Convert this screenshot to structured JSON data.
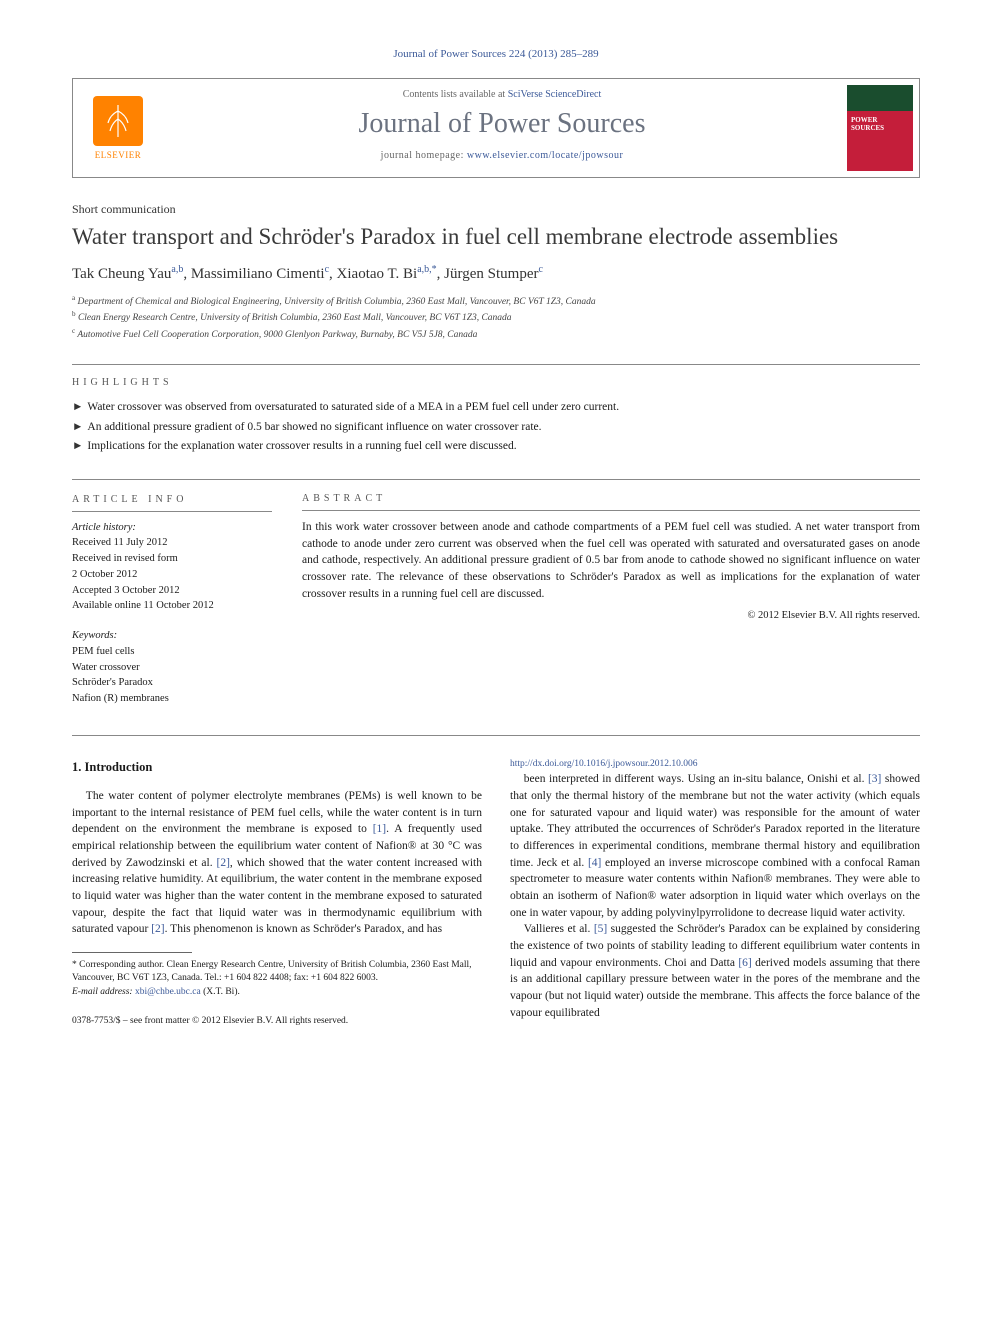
{
  "journal_ref": "Journal of Power Sources 224 (2013) 285–289",
  "header": {
    "contents_prefix": "Contents lists available at ",
    "contents_link": "SciVerse ScienceDirect",
    "journal_name": "Journal of Power Sources",
    "homepage_prefix": "journal homepage: ",
    "homepage_url": "www.elsevier.com/locate/jpowsour",
    "publisher_label": "ELSEVIER"
  },
  "article_type": "Short communication",
  "title": "Water transport and Schröder's Paradox in fuel cell membrane electrode assemblies",
  "authors_html": "Tak Cheung Yau<sup>a,b</sup>, Massimiliano Cimenti<sup>c</sup>, Xiaotao T. Bi<sup>a,b,*</sup>, Jürgen Stumper<sup>c</sup>",
  "affiliations": [
    "a Department of Chemical and Biological Engineering, University of British Columbia, 2360 East Mall, Vancouver, BC V6T 1Z3, Canada",
    "b Clean Energy Research Centre, University of British Columbia, 2360 East Mall, Vancouver, BC V6T 1Z3, Canada",
    "c Automotive Fuel Cell Cooperation Corporation, 9000 Glenlyon Parkway, Burnaby, BC V5J 5J8, Canada"
  ],
  "highlights_label": "highlights",
  "highlights": [
    "Water crossover was observed from oversaturated to saturated side of a MEA in a PEM fuel cell under zero current.",
    "An additional pressure gradient of 0.5 bar showed no significant influence on water crossover rate.",
    "Implications for the explanation water crossover results in a running fuel cell were discussed."
  ],
  "article_info_label": "article info",
  "history_label": "Article history:",
  "history": [
    "Received 11 July 2012",
    "Received in revised form",
    "2 October 2012",
    "Accepted 3 October 2012",
    "Available online 11 October 2012"
  ],
  "keywords_label": "Keywords:",
  "keywords": [
    "PEM fuel cells",
    "Water crossover",
    "Schröder's Paradox",
    "Nafion (R) membranes"
  ],
  "abstract_label": "abstract",
  "abstract_text": "In this work water crossover between anode and cathode compartments of a PEM fuel cell was studied. A net water transport from cathode to anode under zero current was observed when the fuel cell was operated with saturated and oversaturated gases on anode and cathode, respectively. An additional pressure gradient of 0.5 bar from anode to cathode showed no significant influence on water crossover rate. The relevance of these observations to Schröder's Paradox as well as implications for the explanation of water crossover results in a running fuel cell are discussed.",
  "copyright": "© 2012 Elsevier B.V. All rights reserved.",
  "section1_heading": "1. Introduction",
  "para1": "The water content of polymer electrolyte membranes (PEMs) is well known to be important to the internal resistance of PEM fuel cells, while the water content is in turn dependent on the environment the membrane is exposed to [1]. A frequently used empirical relationship between the equilibrium water content of Nafion® at 30 °C was derived by Zawodzinski et al. [2], which showed that the water content increased with increasing relative humidity. At equilibrium, the water content in the membrane exposed to liquid water was higher than the water content in the membrane exposed to saturated vapour, despite the fact that liquid water was in thermodynamic equilibrium with saturated vapour [2]. This phenomenon is known as Schröder's Paradox, and has",
  "para2": "been interpreted in different ways. Using an in-situ balance, Onishi et al. [3] showed that only the thermal history of the membrane but not the water activity (which equals one for saturated vapour and liquid water) was responsible for the amount of water uptake. They attributed the occurrences of Schröder's Paradox reported in the literature to differences in experimental conditions, membrane thermal history and equilibration time. Jeck et al. [4] employed an inverse microscope combined with a confocal Raman spectrometer to measure water contents within Nafion® membranes. They were able to obtain an isotherm of Nafion® water adsorption in liquid water which overlays on the one in water vapour, by adding polyvinylpyrrolidone to decrease liquid water activity.",
  "para3": "Vallieres et al. [5] suggested the Schröder's Paradox can be explained by considering the existence of two points of stability leading to different equilibrium water contents in liquid and vapour environments. Choi and Datta [6] derived models assuming that there is an additional capillary pressure between water in the pores of the membrane and the vapour (but not liquid water) outside the membrane. This affects the force balance of the vapour equilibrated",
  "corr_author": "* Corresponding author. Clean Energy Research Centre, University of British Columbia, 2360 East Mall, Vancouver, BC V6T 1Z3, Canada. Tel.: +1 604 822 4408; fax: +1 604 822 6003.",
  "email_label": "E-mail address: ",
  "email": "xbi@chbe.ubc.ca",
  "email_suffix": " (X.T. Bi).",
  "footer_issn": "0378-7753/$ – see front matter © 2012 Elsevier B.V. All rights reserved.",
  "footer_doi": "http://dx.doi.org/10.1016/j.jpowsour.2012.10.006"
}
